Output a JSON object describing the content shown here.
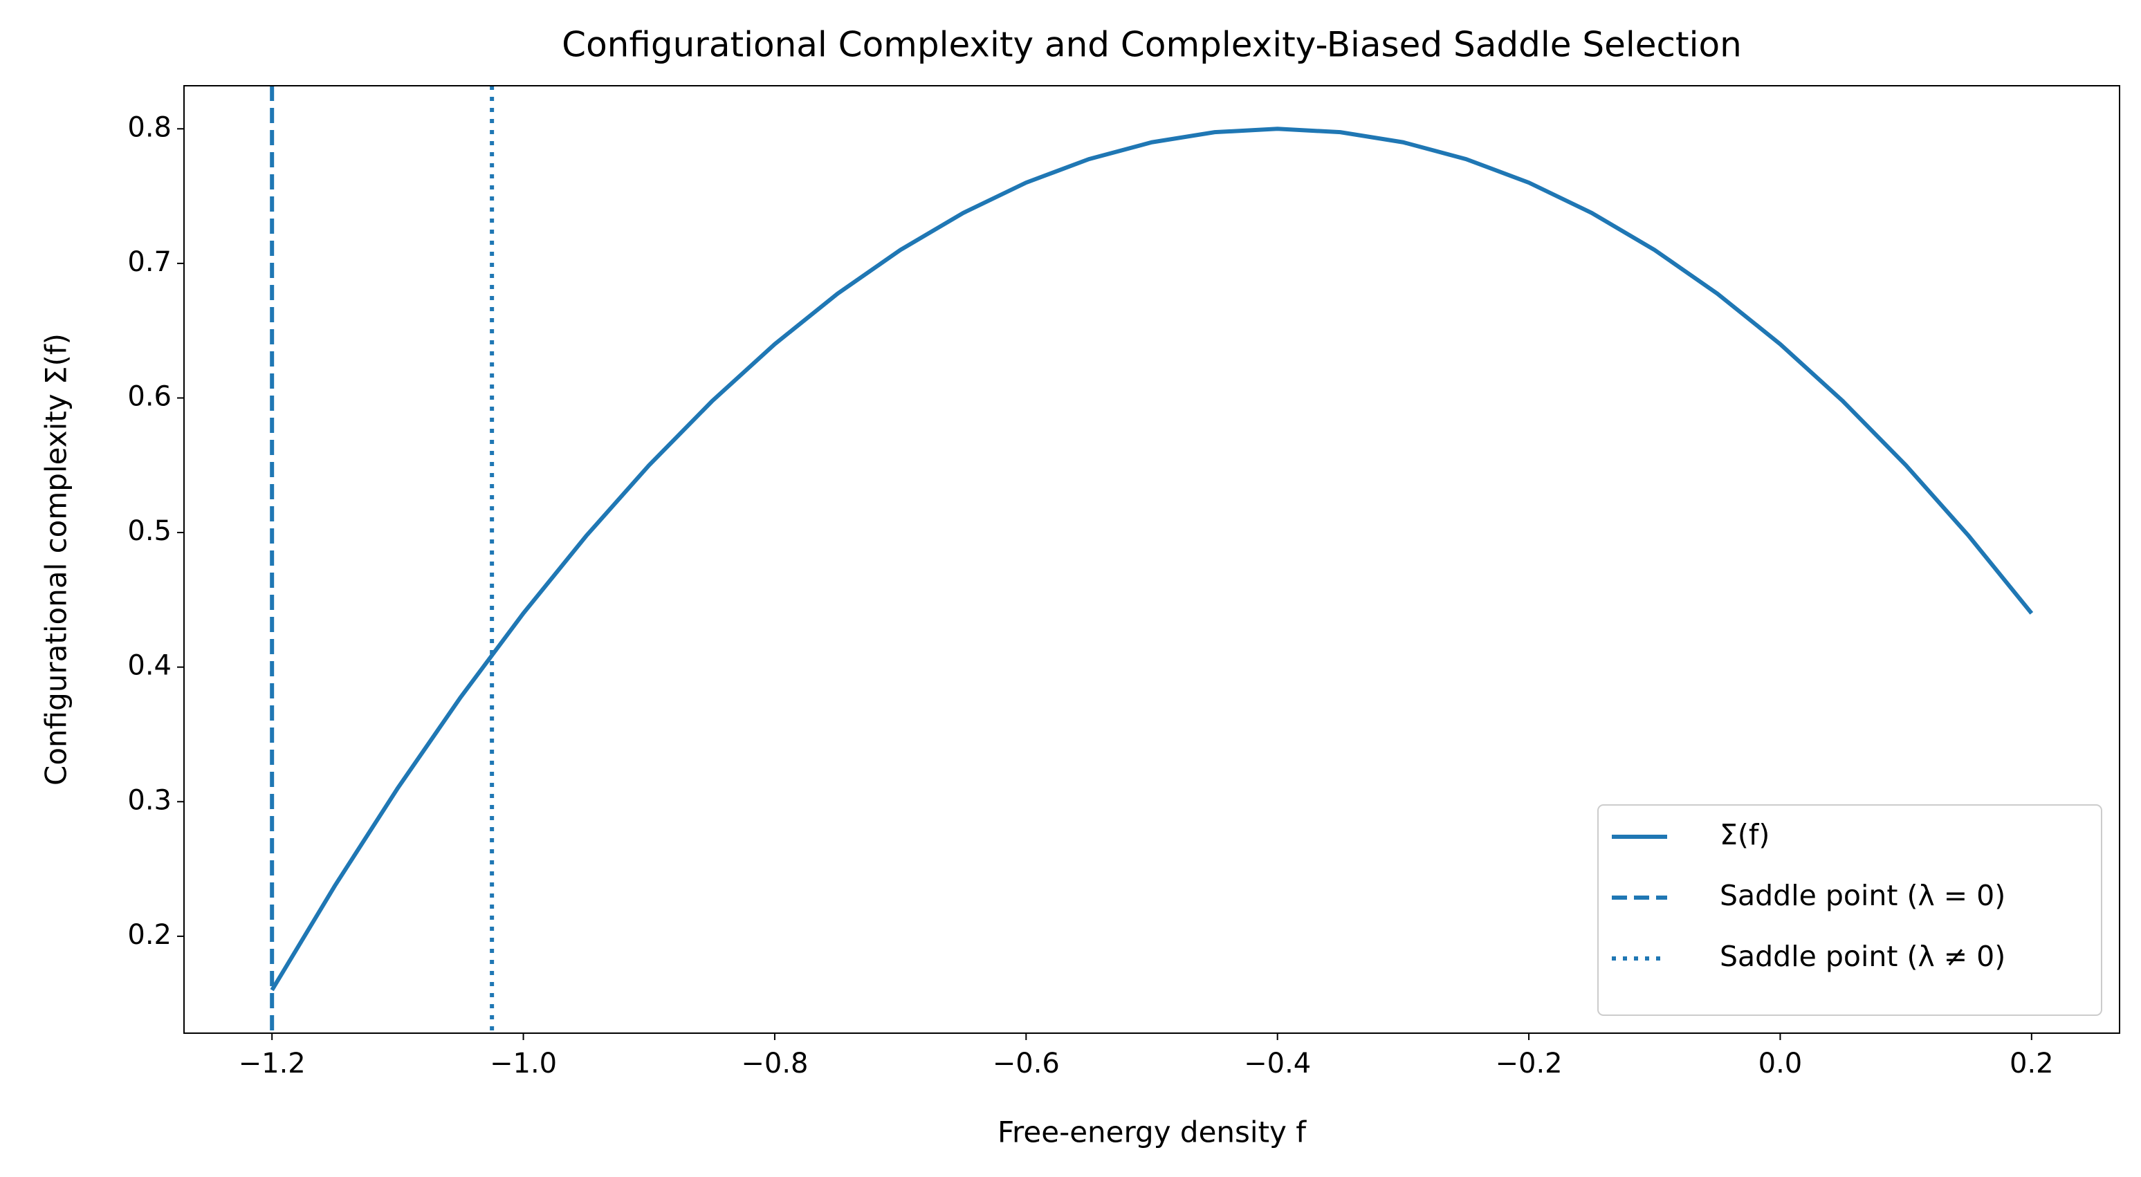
{
  "chart_data": {
    "type": "line",
    "title": "Configurational Complexity and Complexity-Biased Saddle Selection",
    "xlabel": "Free-energy density f",
    "ylabel": "Configurational complexity Σ(f)",
    "x": [
      -1.2,
      -1.15,
      -1.1,
      -1.05,
      -1.0,
      -0.95,
      -0.9,
      -0.85,
      -0.8,
      -0.75,
      -0.7,
      -0.65,
      -0.6,
      -0.55,
      -0.5,
      -0.45,
      -0.4,
      -0.35,
      -0.3,
      -0.25,
      -0.2,
      -0.15,
      -0.1,
      -0.05,
      0.0,
      0.05,
      0.1,
      0.15,
      0.2
    ],
    "series": [
      {
        "name": "Σ(f)",
        "color": "#1f77b4",
        "values": [
          0.16,
          0.2375,
          0.31,
          0.3775,
          0.44,
          0.4975,
          0.55,
          0.5975,
          0.64,
          0.6775,
          0.71,
          0.7375,
          0.76,
          0.7775,
          0.79,
          0.7975,
          0.8,
          0.7975,
          0.79,
          0.7775,
          0.76,
          0.7375,
          0.71,
          0.6775,
          0.64,
          0.5975,
          0.55,
          0.4975,
          0.44
        ]
      }
    ],
    "vlines": [
      {
        "name": "Saddle point (λ = 0)",
        "x": -1.2,
        "color": "#1f77b4",
        "style": "dashed"
      },
      {
        "name": "Saddle point (λ ≠ 0)",
        "x": -1.025,
        "color": "#1f77b4",
        "style": "dotted"
      }
    ],
    "xlim": [
      -1.27,
      0.27
    ],
    "ylim": [
      0.128,
      0.832
    ],
    "xticks": [
      {
        "value": -1.2,
        "label": "−1.2"
      },
      {
        "value": -1.0,
        "label": "−1.0"
      },
      {
        "value": -0.8,
        "label": "−0.8"
      },
      {
        "value": -0.6,
        "label": "−0.6"
      },
      {
        "value": -0.4,
        "label": "−0.4"
      },
      {
        "value": -0.2,
        "label": "−0.2"
      },
      {
        "value": 0.0,
        "label": "0.0"
      },
      0.2
    ],
    "yticks": [
      0.2,
      0.3,
      0.4,
      0.5,
      0.6,
      0.7,
      0.8
    ],
    "grid": false,
    "legend": "lower right"
  }
}
